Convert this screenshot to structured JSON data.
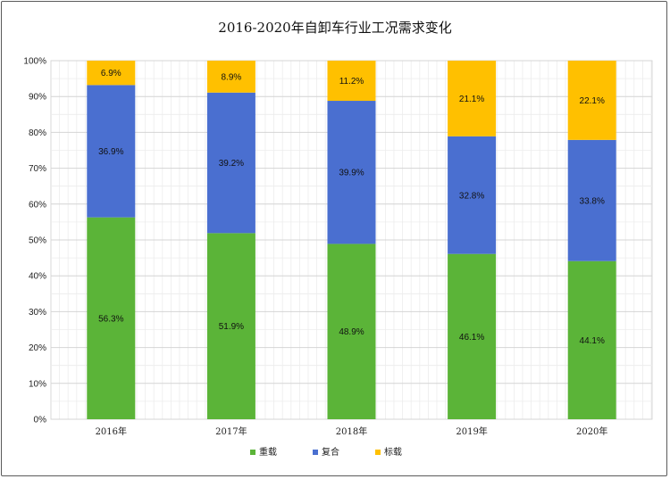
{
  "chart_data": {
    "type": "bar",
    "stacked": true,
    "title": "2016-2020年自卸车行业工况需求变化",
    "categories": [
      "2016年",
      "2017年",
      "2018年",
      "2019年",
      "2020年"
    ],
    "series": [
      {
        "name": "重载",
        "color": "#5bb438",
        "values": [
          56.3,
          51.9,
          48.9,
          46.1,
          44.1
        ],
        "labels": [
          "56.3%",
          "51.9%",
          "48.9%",
          "46.1%",
          "44.1%"
        ]
      },
      {
        "name": "复合",
        "color": "#4a6fd0",
        "values": [
          36.9,
          39.2,
          39.9,
          32.8,
          33.8
        ],
        "labels": [
          "36.9%",
          "39.2%",
          "39.9%",
          "32.8%",
          "33.8%"
        ]
      },
      {
        "name": "标载",
        "color": "#ffc000",
        "values": [
          6.9,
          8.9,
          11.2,
          21.1,
          22.1
        ],
        "labels": [
          "6.9%",
          "8.9%",
          "11.2%",
          "21.1%",
          "22.1%"
        ]
      }
    ],
    "ylim": [
      0,
      100
    ],
    "yticks": [
      "0%",
      "10%",
      "20%",
      "30%",
      "40%",
      "50%",
      "60%",
      "70%",
      "80%",
      "90%",
      "100%"
    ],
    "grid": true,
    "legend": "bottom"
  }
}
